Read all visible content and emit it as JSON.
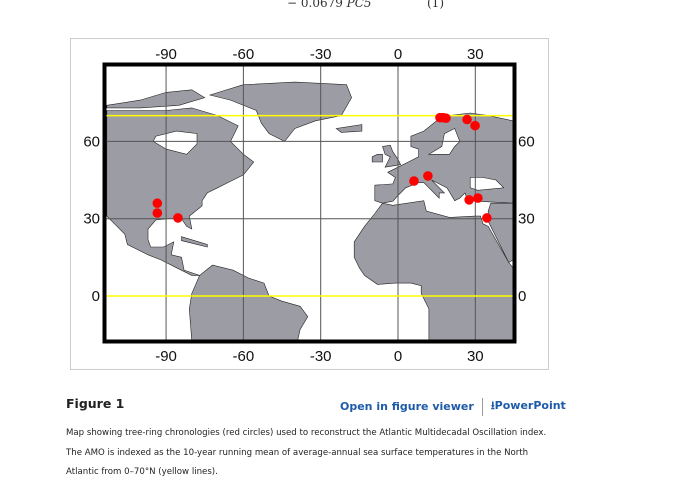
{
  "equation": {
    "text_prefix": "− 0.0679 ",
    "term": "PC5",
    "number": "(1)"
  },
  "figure": {
    "label": "Figure 1",
    "open_viewer": "Open in figure viewer",
    "powerpoint": "PowerPoint",
    "caption": "Map showing tree-ring chronologies (red circles) used to reconstruct the Atlantic Multidecadal Oscillation index. The AMO is indexed as the 10-year running mean of average-annual sea surface temperatures in the North Atlantic from 0–70°N (yellow lines).",
    "map": {
      "lon_ticks": [
        -90,
        -60,
        -30,
        0,
        30
      ],
      "lon_tick_labels": [
        "-90",
        "-60",
        "-30",
        "0",
        "30"
      ],
      "lat_ticks": [
        60,
        30,
        0
      ],
      "lat_tick_labels": [
        "60",
        "30",
        "0"
      ],
      "lon_range": [
        -113,
        44.6
      ],
      "lat_range": [
        -17.5,
        90
      ],
      "yellow_lines_lat": [
        70,
        0
      ],
      "colors": {
        "land": "#9c9ca4",
        "ocean": "#ffffff",
        "grid": "#555555",
        "band": "#ffff00",
        "points": "#ff0000",
        "frame": "#000000"
      },
      "points": [
        {
          "lon": -93.4,
          "lat": 36
        },
        {
          "lon": -93.4,
          "lat": 32.2
        },
        {
          "lon": -85.4,
          "lat": 30.3
        },
        {
          "lon": 6.2,
          "lat": 44.6
        },
        {
          "lon": 11.6,
          "lat": 46.6
        },
        {
          "lon": 16.3,
          "lat": 69.2
        },
        {
          "lon": 17.5,
          "lat": 69.2
        },
        {
          "lon": 18.6,
          "lat": 69
        },
        {
          "lon": 26.8,
          "lat": 68.5
        },
        {
          "lon": 29.9,
          "lat": 66.1
        },
        {
          "lon": 27.6,
          "lat": 37.3
        },
        {
          "lon": 31,
          "lat": 38
        },
        {
          "lon": 34.5,
          "lat": 30.3
        }
      ]
    }
  }
}
